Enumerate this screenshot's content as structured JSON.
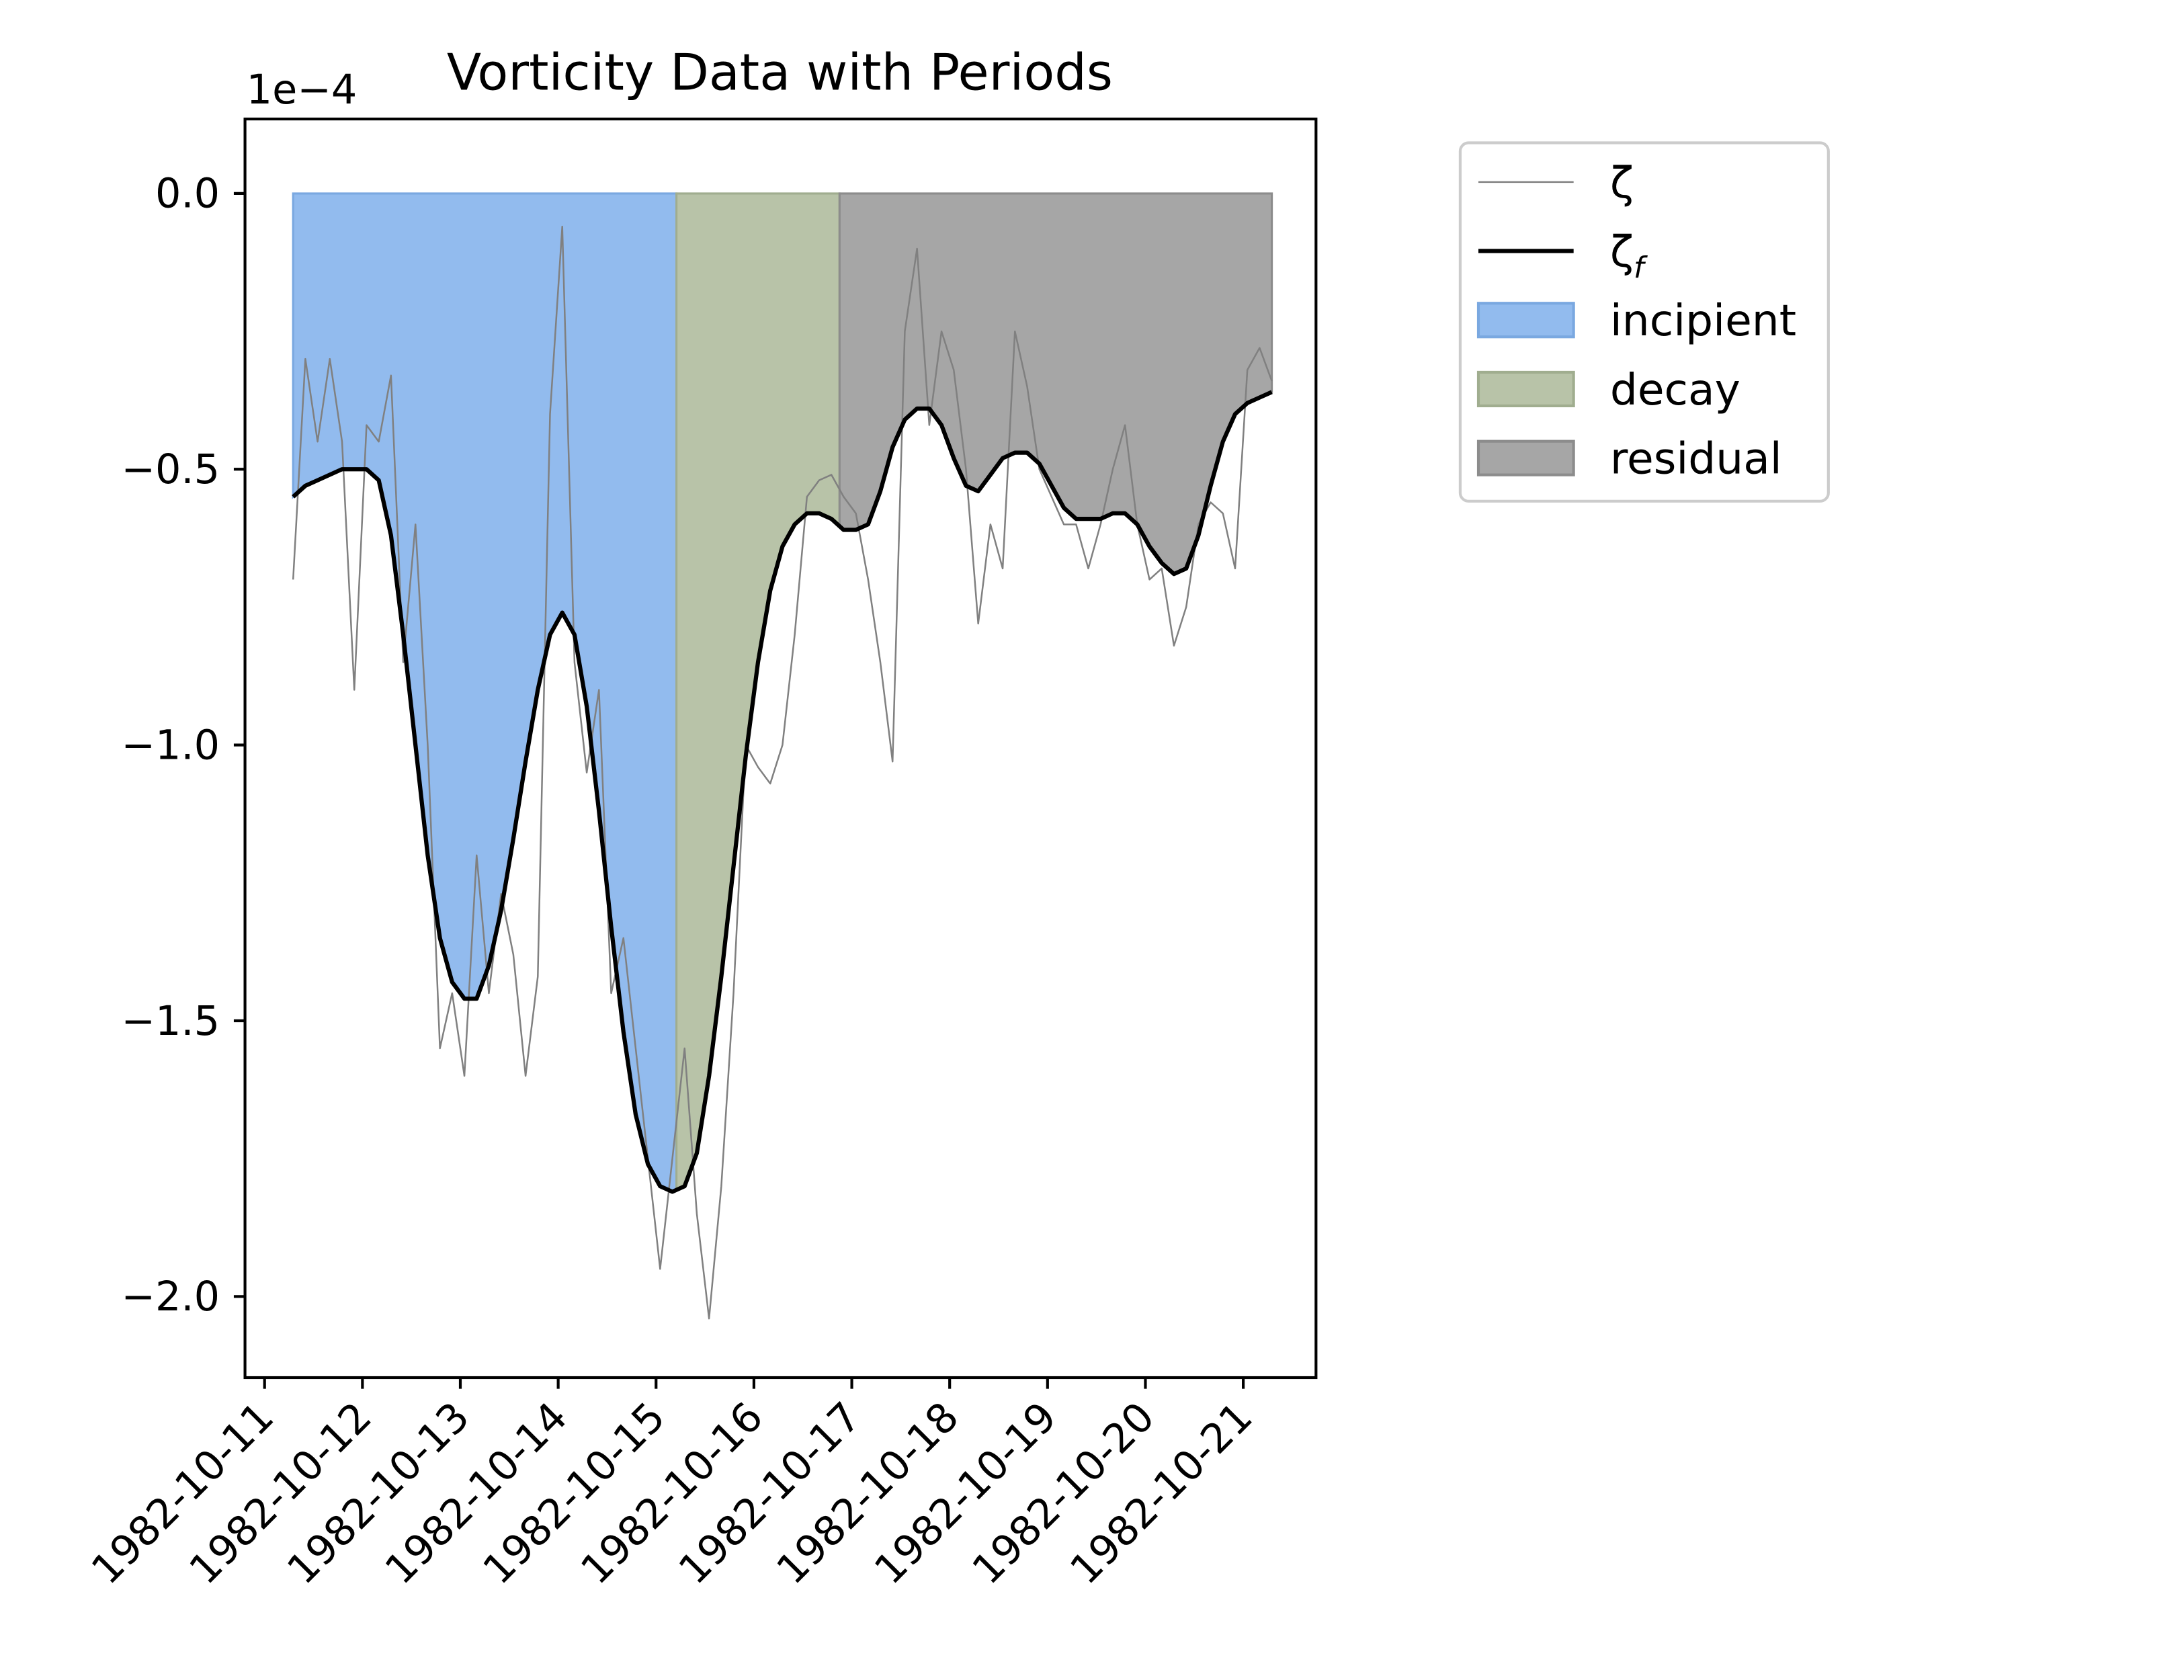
{
  "chart_data": {
    "type": "line",
    "title": "Vorticity Data with Periods",
    "y_offset_label": "1e−4",
    "x": [
      "1982-10-11T07:00",
      "1982-10-11T10:00",
      "1982-10-11T13:00",
      "1982-10-11T16:00",
      "1982-10-11T19:00",
      "1982-10-11T22:00",
      "1982-10-12T01:00",
      "1982-10-12T04:00",
      "1982-10-12T07:00",
      "1982-10-12T10:00",
      "1982-10-12T13:00",
      "1982-10-12T16:00",
      "1982-10-12T19:00",
      "1982-10-12T22:00",
      "1982-10-13T01:00",
      "1982-10-13T04:00",
      "1982-10-13T07:00",
      "1982-10-13T10:00",
      "1982-10-13T13:00",
      "1982-10-13T16:00",
      "1982-10-13T19:00",
      "1982-10-13T22:00",
      "1982-10-14T01:00",
      "1982-10-14T04:00",
      "1982-10-14T07:00",
      "1982-10-14T10:00",
      "1982-10-14T13:00",
      "1982-10-14T16:00",
      "1982-10-14T19:00",
      "1982-10-14T22:00",
      "1982-10-15T01:00",
      "1982-10-15T04:00",
      "1982-10-15T07:00",
      "1982-10-15T10:00",
      "1982-10-15T13:00",
      "1982-10-15T16:00",
      "1982-10-15T19:00",
      "1982-10-15T22:00",
      "1982-10-16T01:00",
      "1982-10-16T04:00",
      "1982-10-16T07:00",
      "1982-10-16T10:00",
      "1982-10-16T13:00",
      "1982-10-16T16:00",
      "1982-10-16T19:00",
      "1982-10-16T22:00",
      "1982-10-17T01:00",
      "1982-10-17T04:00",
      "1982-10-17T07:00",
      "1982-10-17T10:00",
      "1982-10-17T13:00",
      "1982-10-17T16:00",
      "1982-10-17T19:00",
      "1982-10-17T22:00",
      "1982-10-18T01:00",
      "1982-10-18T04:00",
      "1982-10-18T07:00",
      "1982-10-18T10:00",
      "1982-10-18T13:00",
      "1982-10-18T16:00",
      "1982-10-18T19:00",
      "1982-10-18T22:00",
      "1982-10-19T01:00",
      "1982-10-19T04:00",
      "1982-10-19T07:00",
      "1982-10-19T10:00",
      "1982-10-19T13:00",
      "1982-10-19T16:00",
      "1982-10-19T19:00",
      "1982-10-19T22:00",
      "1982-10-20T01:00",
      "1982-10-20T04:00",
      "1982-10-20T07:00",
      "1982-10-20T10:00",
      "1982-10-20T13:00",
      "1982-10-20T16:00",
      "1982-10-20T19:00",
      "1982-10-20T22:00",
      "1982-10-21T01:00",
      "1982-10-21T04:00",
      "1982-10-21T07:00"
    ],
    "series": [
      {
        "name": "ζ",
        "color": "#808080",
        "width": 1.2,
        "values": [
          -0.7,
          -0.3,
          -0.45,
          -0.3,
          -0.45,
          -0.9,
          -0.42,
          -0.45,
          -0.33,
          -0.85,
          -0.6,
          -1.0,
          -1.55,
          -1.45,
          -1.6,
          -1.2,
          -1.45,
          -1.27,
          -1.38,
          -1.6,
          -1.42,
          -0.4,
          -0.06,
          -0.85,
          -1.05,
          -0.9,
          -1.45,
          -1.35,
          -1.55,
          -1.75,
          -1.95,
          -1.75,
          -1.55,
          -1.85,
          -2.04,
          -1.8,
          -1.45,
          -1.0,
          -1.04,
          -1.07,
          -1.0,
          -0.8,
          -0.55,
          -0.52,
          -0.51,
          -0.55,
          -0.58,
          -0.7,
          -0.85,
          -1.03,
          -0.25,
          -0.1,
          -0.42,
          -0.25,
          -0.32,
          -0.5,
          -0.78,
          -0.6,
          -0.68,
          -0.25,
          -0.35,
          -0.5,
          -0.55,
          -0.6,
          -0.6,
          -0.68,
          -0.6,
          -0.5,
          -0.42,
          -0.6,
          -0.7,
          -0.68,
          -0.82,
          -0.75,
          -0.6,
          -0.56,
          -0.58,
          -0.68,
          -0.32,
          -0.28,
          -0.34
        ]
      },
      {
        "name": "ζ_f",
        "color": "#000000",
        "width": 3,
        "values": [
          -0.55,
          -0.53,
          -0.52,
          -0.51,
          -0.5,
          -0.5,
          -0.5,
          -0.52,
          -0.62,
          -0.8,
          -1.0,
          -1.2,
          -1.35,
          -1.43,
          -1.46,
          -1.46,
          -1.4,
          -1.3,
          -1.17,
          -1.03,
          -0.9,
          -0.8,
          -0.76,
          -0.8,
          -0.93,
          -1.12,
          -1.33,
          -1.52,
          -1.67,
          -1.76,
          -1.8,
          -1.81,
          -1.8,
          -1.74,
          -1.6,
          -1.42,
          -1.22,
          -1.02,
          -0.85,
          -0.72,
          -0.64,
          -0.6,
          -0.58,
          -0.58,
          -0.59,
          -0.61,
          -0.61,
          -0.6,
          -0.54,
          -0.46,
          -0.41,
          -0.39,
          -0.39,
          -0.42,
          -0.48,
          -0.53,
          -0.54,
          -0.51,
          -0.48,
          -0.47,
          -0.47,
          -0.49,
          -0.53,
          -0.57,
          -0.59,
          -0.59,
          -0.59,
          -0.58,
          -0.58,
          -0.6,
          -0.64,
          -0.67,
          -0.69,
          -0.68,
          -0.62,
          -0.53,
          -0.45,
          -0.4,
          -0.38,
          -0.37,
          -0.36
        ]
      }
    ],
    "periods": [
      {
        "name": "incipient",
        "color": "#92bbee",
        "edge": "#7aa8e0",
        "start": "1982-10-11T07:00",
        "end": "1982-10-15T05:00"
      },
      {
        "name": "decay",
        "color": "#b8c3a8",
        "edge": "#a0ad8f",
        "start": "1982-10-15T05:00",
        "end": "1982-10-16T21:00"
      },
      {
        "name": "residual",
        "color": "#a6a6a6",
        "edge": "#8c8c8c",
        "start": "1982-10-16T21:00",
        "end": "1982-10-21T07:00"
      }
    ],
    "xlim": [
      "1982-10-10T19:12",
      "1982-10-21T17:50"
    ],
    "xticks": [
      "1982-10-11",
      "1982-10-12",
      "1982-10-13",
      "1982-10-14",
      "1982-10-15",
      "1982-10-16",
      "1982-10-17",
      "1982-10-18",
      "1982-10-19",
      "1982-10-20",
      "1982-10-21"
    ],
    "ylim": [
      -2.147,
      0.135
    ],
    "yticks": [
      {
        "value": 0,
        "label": "0.0"
      },
      {
        "value": -0.5,
        "label": "−0.5"
      },
      {
        "value": -1,
        "label": "−1.0"
      },
      {
        "value": -1.5,
        "label": "−1.5"
      },
      {
        "value": -2,
        "label": "−2.0"
      }
    ],
    "legend": "outside-upper-right"
  }
}
